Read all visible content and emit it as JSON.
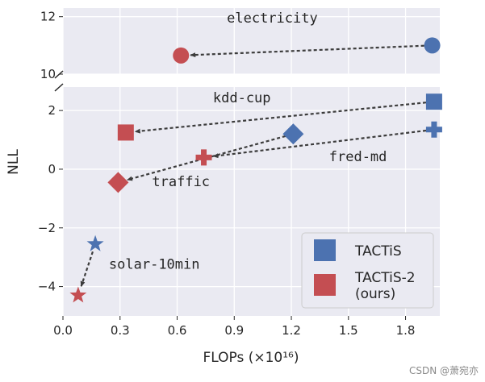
{
  "chart_data": {
    "type": "scatter",
    "xlabel": "FLOPs (×10¹⁶)",
    "ylabel": "NLL",
    "xlim": [
      0.0,
      1.98
    ],
    "top_panel_ylim": [
      10,
      12.3
    ],
    "bottom_panel_ylim": [
      -5.0,
      2.8
    ],
    "x_ticks": [
      0.0,
      0.3,
      0.6,
      0.9,
      1.2,
      1.5,
      1.8
    ],
    "x_tick_labels": [
      "0.0",
      "0.3",
      "0.6",
      "0.9",
      "1.2",
      "1.5",
      "1.8"
    ],
    "top_y_ticks": [
      10,
      12
    ],
    "top_y_tick_labels": [
      "10",
      "12"
    ],
    "bottom_y_ticks": [
      -4,
      -2,
      0,
      2
    ],
    "bottom_y_tick_labels": [
      "−4",
      "−2",
      "0",
      "2"
    ],
    "legend": {
      "placement": "lower-right",
      "entries": [
        {
          "label": "TACTiS",
          "color": "#4c72b0"
        },
        {
          "label": "TACTiS-2\n(ours)",
          "color": "#c44e52"
        }
      ]
    },
    "series": [
      {
        "name": "TACTiS",
        "color": "#4c72b0",
        "points": [
          {
            "dataset": "electricity",
            "x": 1.94,
            "y": 11.0,
            "marker": "circle"
          },
          {
            "dataset": "kdd-cup",
            "x": 1.95,
            "y": 2.3,
            "marker": "square"
          },
          {
            "dataset": "fred-md",
            "x": 1.95,
            "y": 1.35,
            "marker": "plus"
          },
          {
            "dataset": "traffic",
            "x": 1.21,
            "y": 1.2,
            "marker": "diamond"
          },
          {
            "dataset": "solar-10min",
            "x": 0.17,
            "y": -2.55,
            "marker": "star"
          }
        ]
      },
      {
        "name": "TACTiS-2",
        "color": "#c44e52",
        "points": [
          {
            "dataset": "electricity",
            "x": 0.62,
            "y": 10.65,
            "marker": "circle"
          },
          {
            "dataset": "kdd-cup",
            "x": 0.33,
            "y": 1.25,
            "marker": "square"
          },
          {
            "dataset": "fred-md",
            "x": 0.74,
            "y": 0.4,
            "marker": "plus"
          },
          {
            "dataset": "traffic",
            "x": 0.29,
            "y": -0.45,
            "marker": "diamond"
          },
          {
            "dataset": "solar-10min",
            "x": 0.08,
            "y": -4.3,
            "marker": "star"
          }
        ]
      }
    ],
    "annotations": [
      {
        "text": "electricity",
        "x": 1.1,
        "y": 11.8
      },
      {
        "text": "kdd-cup",
        "x": 0.94,
        "y": 2.28
      },
      {
        "text": "fred-md",
        "x": 1.55,
        "y": 0.28
      },
      {
        "text": "traffic",
        "x": 0.62,
        "y": -0.58
      },
      {
        "text": "solar-10min",
        "x": 0.48,
        "y": -3.4
      }
    ]
  },
  "watermark": "CSDN @萧宛亦"
}
